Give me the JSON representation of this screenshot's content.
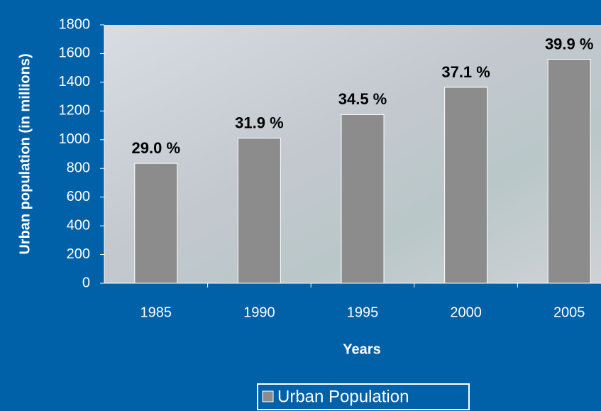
{
  "chart_data": {
    "type": "bar",
    "y_label": "Urban population (in millions)",
    "x_label": "Years",
    "categories": [
      "1985",
      "1990",
      "1995",
      "2000",
      "2005"
    ],
    "series": [
      {
        "name": "Urban Population",
        "color": "#8c8c8c",
        "values": [
          835,
          1010,
          1175,
          1365,
          1560
        ]
      }
    ],
    "bar_labels": [
      "29.0 %",
      "31.9 %",
      "34.5 %",
      "37.1 %",
      "39.9 %"
    ],
    "ylim": [
      0,
      1800
    ],
    "yticks": [
      0,
      200,
      400,
      600,
      800,
      1000,
      1200,
      1400,
      1600,
      1800
    ]
  }
}
